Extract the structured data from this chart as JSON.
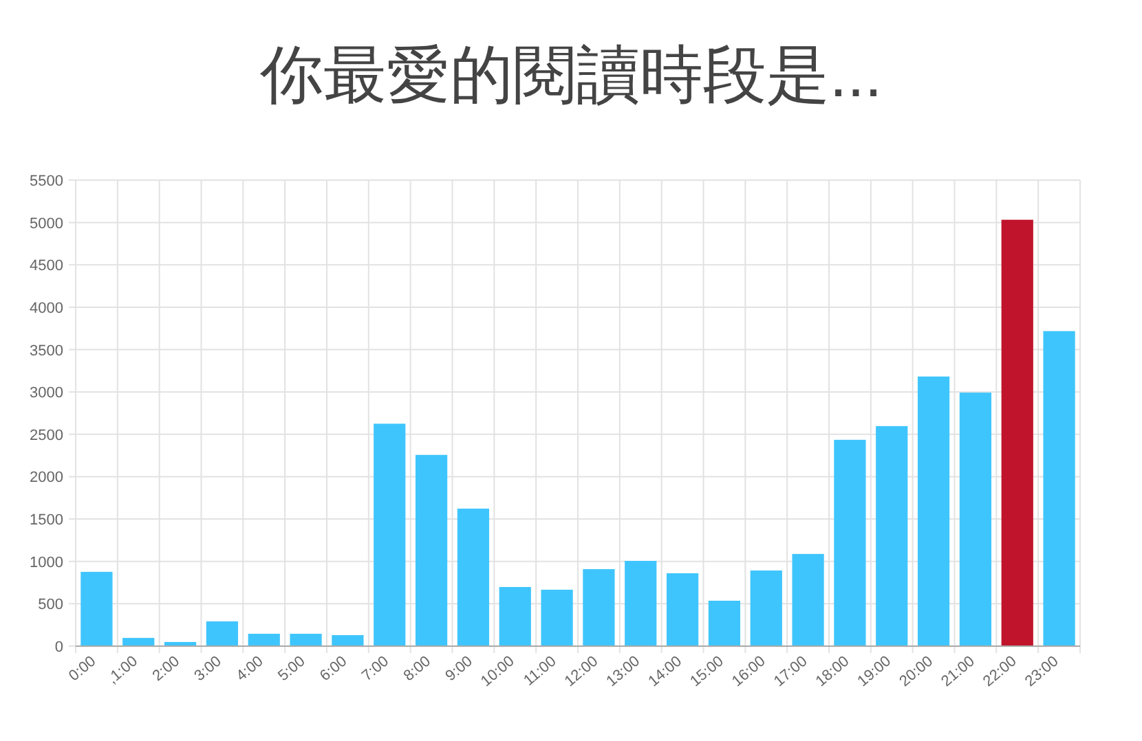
{
  "chart_data": {
    "type": "bar",
    "title": "你最愛的閱讀時段是...",
    "categories": [
      "0:00",
      ",1:00",
      "2:00",
      "3:00",
      "4:00",
      "5:00",
      "6:00",
      "7:00",
      "8:00",
      "9:00",
      "10:00",
      "11:00",
      "12:00",
      "13:00",
      "14:00",
      "15:00",
      "16:00",
      "17:00",
      "18:00",
      "19:00",
      "20:00",
      "21:00",
      "22:00",
      "23:00"
    ],
    "values": [
      877,
      97,
      49,
      292,
      146,
      146,
      130,
      2625,
      2257,
      1623,
      698,
      666,
      909,
      1006,
      860,
      536,
      893,
      1088,
      2435,
      2597,
      3182,
      2992,
      5032,
      3718
    ],
    "colors": [
      "#3fc5fd",
      "#3fc5fd",
      "#3fc5fd",
      "#3fc5fd",
      "#3fc5fd",
      "#3fc5fd",
      "#3fc5fd",
      "#3fc5fd",
      "#3fc5fd",
      "#3fc5fd",
      "#3fc5fd",
      "#3fc5fd",
      "#3fc5fd",
      "#3fc5fd",
      "#3fc5fd",
      "#3fc5fd",
      "#3fc5fd",
      "#3fc5fd",
      "#3fc5fd",
      "#3fc5fd",
      "#3fc5fd",
      "#3fc5fd",
      "#c0142c",
      "#3fc5fd"
    ],
    "ylim": [
      0,
      5500
    ],
    "yticks": [
      0,
      500,
      1000,
      1500,
      2000,
      2500,
      3000,
      3500,
      4000,
      4500,
      5000,
      5500
    ],
    "grid": true
  }
}
